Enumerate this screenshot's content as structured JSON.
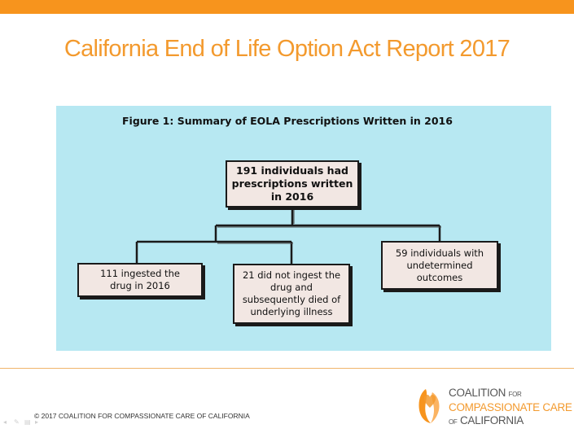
{
  "slide": {
    "title": "California End of Life Option Act Report 2017",
    "accent_color": "#f7941d",
    "panel_color": "#b7e8f2"
  },
  "figure": {
    "caption": "Figure 1: Summary of EOLA Prescriptions Written in 2016",
    "root": [
      "191 individuals had",
      "prescriptions written",
      "in 2016"
    ],
    "children": [
      [
        "111 ingested the",
        "drug in 2016"
      ],
      [
        "21 did not ingest the",
        "drug and",
        "subsequently died of",
        "underlying illness"
      ],
      [
        "59 individuals with",
        "undetermined",
        "outcomes"
      ]
    ]
  },
  "footer": {
    "copyright": "© 2017 COALITION  FOR COMPASSIONATE CARE OF CALIFORNIA",
    "logo": {
      "line1": "COALITION",
      "line1_small": "FOR",
      "line2": "COMPASSIONATE CARE",
      "line3_small": "OF",
      "line3": "CALIFORNIA"
    },
    "controls": [
      "prev-icon",
      "pen-icon",
      "menu-icon",
      "next-icon"
    ]
  }
}
